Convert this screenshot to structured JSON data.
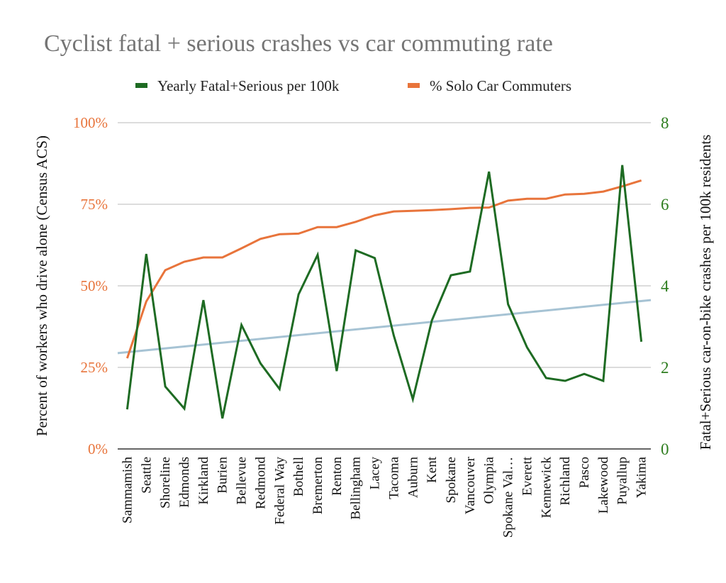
{
  "chart_data": {
    "type": "line",
    "title": "Cyclist fatal + serious crashes vs car commuting rate",
    "legend": {
      "position": "top",
      "entries": [
        {
          "name": "Yearly Fatal+Serious per 100k",
          "color": "#1e6b23"
        },
        {
          "name": "% Solo Car Commuters",
          "color": "#e8743b"
        }
      ]
    },
    "categories": [
      "Sammamish",
      "Seattle",
      "Shoreline",
      "Edmonds",
      "Kirkland",
      "Burien",
      "Bellevue",
      "Redmond",
      "Federal Way",
      "Bothell",
      "Bremerton",
      "Renton",
      "Bellingham",
      "Lacey",
      "Tacoma",
      "Auburn",
      "Kent",
      "Spokane",
      "Vancouver",
      "Olympia",
      "Spokane Val…",
      "Everett",
      "Kennewick",
      "Richland",
      "Pasco",
      "Lakewood",
      "Puyallup",
      "Yakima"
    ],
    "series": [
      {
        "name": "Yearly Fatal+Serious per 100k",
        "axis": "right",
        "color": "#1e6b23",
        "values": [
          0.97,
          4.78,
          1.53,
          0.99,
          3.65,
          0.75,
          3.04,
          2.1,
          1.47,
          3.79,
          4.76,
          1.91,
          4.87,
          4.68,
          2.78,
          1.22,
          3.15,
          4.26,
          4.35,
          6.8,
          3.55,
          2.49,
          1.74,
          1.67,
          1.84,
          1.67,
          6.96,
          2.63
        ]
      },
      {
        "name": "% Solo Car Commuters",
        "axis": "left",
        "color": "#e8743b",
        "values": [
          27.8,
          45.2,
          54.8,
          57.4,
          58.7,
          58.7,
          61.5,
          64.4,
          65.8,
          66.0,
          68.0,
          68.0,
          69.6,
          71.6,
          72.8,
          73.0,
          73.2,
          73.5,
          73.9,
          74.0,
          76.1,
          76.7,
          76.7,
          78.0,
          78.2,
          78.9,
          80.5,
          82.3
        ]
      }
    ],
    "trendline": {
      "of_series": "Yearly Fatal+Serious per 100k",
      "axis": "right",
      "color": "#a6c3d4",
      "start_value": 2.35,
      "end_value": 3.65
    },
    "left_axis": {
      "label": "Percent of workers who drive alone (Census ACS)",
      "range": [
        0,
        100
      ],
      "ticks": [
        0,
        25,
        50,
        75,
        100
      ],
      "tick_labels": [
        "0%",
        "25%",
        "50%",
        "75%",
        "100%"
      ],
      "color": "#e8743b"
    },
    "right_axis": {
      "label": "Fatal+Serious car-on-bike crashes per 100k residents",
      "range": [
        0,
        8
      ],
      "ticks": [
        0,
        2,
        4,
        6,
        8
      ],
      "tick_labels": [
        "0",
        "2",
        "4",
        "6",
        "8"
      ],
      "color": "#2e7d1f"
    },
    "grid": true,
    "gridline_color": "#d0d0d0"
  }
}
